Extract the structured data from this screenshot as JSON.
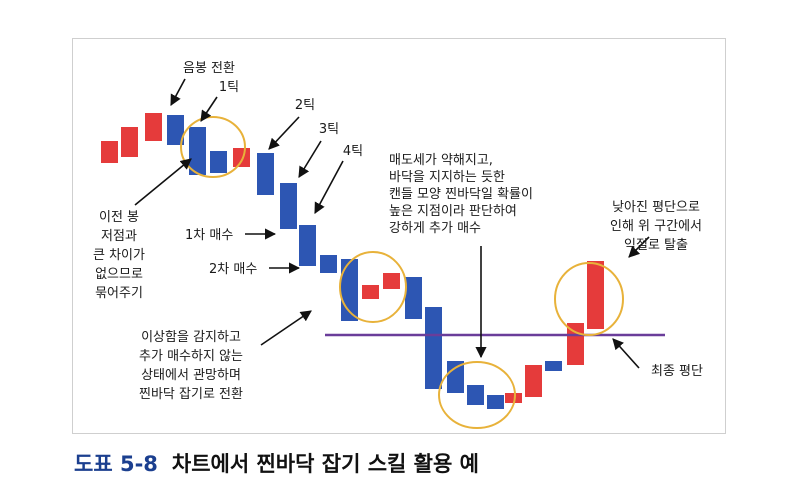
{
  "colors": {
    "bull": "#e53b3b",
    "bear": "#2d56b3",
    "circle": "#e8b23a",
    "line": "#6a3d9a",
    "arrow": "#111111"
  },
  "labels": {
    "yinbong": "음봉 전환",
    "tick1": "1틱",
    "tick2": "2틱",
    "tick3": "3틱",
    "tick4": "4틱",
    "merge": [
      "이전 봉",
      "저점과",
      "큰 차이가",
      "없으므로",
      "묶어주기"
    ],
    "buy1": "1차 매수",
    "buy2": "2차 매수",
    "watch": [
      "이상함을 감지하고",
      "추가 매수하지 않는",
      "상태에서 관망하며",
      "찐바닥 잡기로 전환"
    ],
    "bottom": [
      "매도세가 약해지고,",
      "바닥을 지지하는 듯한",
      "캔들 모양 찐바닥일 확률이",
      "높은 지점이라 판단하여",
      "강하게 추가 매수"
    ],
    "exit": [
      "낮아진 평단으로",
      "인해 위 구간에서",
      "익절로 탈출"
    ],
    "final_avg": "최종 평단"
  },
  "caption": {
    "number": "도표 5-8",
    "title": "차트에서 찐바닥 잡기 스킬 활용 예"
  }
}
